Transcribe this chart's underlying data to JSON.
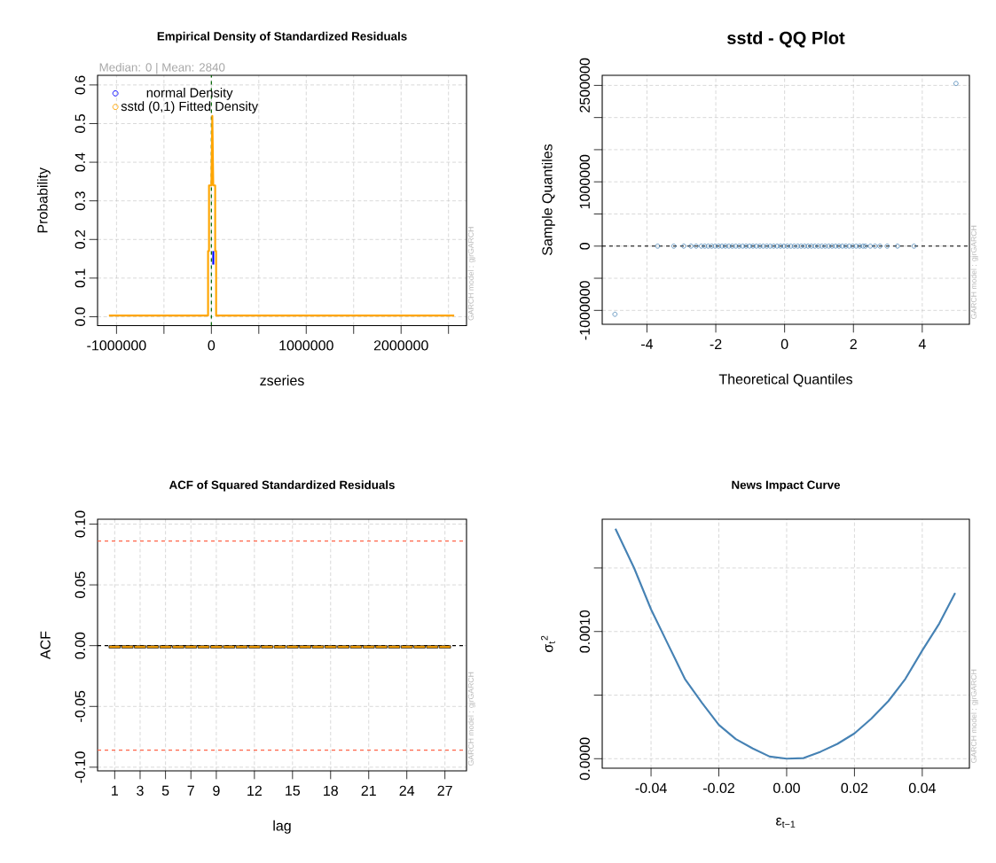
{
  "chart_data": [
    {
      "type": "line",
      "title": "Empirical Density of Standardized Residuals",
      "subtitle": "Median:  0 | Mean:  2840",
      "xlabel": "zseries",
      "ylabel": "Probability",
      "xlim": [
        -1200000,
        2690000
      ],
      "ylim": [
        -0.023,
        0.625
      ],
      "xticks": [
        -1000000,
        {
          "value": -500000,
          "label": null
        },
        0,
        {
          "value": 500000,
          "label": null
        },
        1000000,
        {
          "value": 1500000,
          "label": null
        },
        2000000,
        {
          "value": 2500000,
          "label": null
        }
      ],
      "yticks": [
        {
          "value": 0,
          "label": "0.0"
        },
        0.1,
        0.2,
        0.3,
        0.4,
        0.5,
        0.6
      ],
      "series": [
        {
          "name": "normal Density",
          "color": "#0000ff",
          "x": [
            20000,
            20000
          ],
          "values": [
            0.135,
            0.17
          ]
        },
        {
          "name": "sstd (0,1) Fitted Density",
          "color": "#ffa500",
          "x": [
            -1080000,
            -35000,
            -35000,
            -25000,
            -25000,
            0,
            10000,
            20000,
            40000,
            40000,
            50000,
            50000,
            2560000
          ],
          "values": [
            0.003,
            0.003,
            0.17,
            0.17,
            0.34,
            0.34,
            0.52,
            0.34,
            0.34,
            0.17,
            0.17,
            0.003,
            0.003
          ]
        }
      ],
      "ref_lines": [
        {
          "axis": "x",
          "value": 0,
          "color": "#006400",
          "line_style": "dashed"
        }
      ],
      "grid": true,
      "legend": "top left",
      "annotations": [
        "GARCH model : gjrGARCH"
      ]
    },
    {
      "type": "scatter",
      "title": "sstd - QQ Plot",
      "xlabel": "Theoretical Quantiles",
      "ylabel": "Sample Quantiles",
      "xlim": [
        -5.3,
        5.37
      ],
      "ylim": [
        -1216000,
        2657000
      ],
      "xticks": [
        -4,
        -2,
        0,
        2,
        4
      ],
      "yticks": [
        -1000000,
        {
          "value": -500000,
          "label": null
        },
        0,
        {
          "value": 500000,
          "label": null
        },
        1000000,
        {
          "value": 1500000,
          "label": null
        },
        {
          "value": 2000000,
          "label": null
        },
        2500000
      ],
      "color": "#4682b4",
      "marker": "circle",
      "x": [
        -4.93,
        -3.69,
        -3.22,
        -2.93,
        -2.72,
        -2.57,
        -2.42,
        -2.32,
        -2.22,
        -2.12,
        -2.02,
        -1.92,
        -1.82,
        -1.72,
        -1.62,
        -1.52,
        -1.42,
        -1.32,
        -1.22,
        -1.12,
        -1.02,
        -0.92,
        -0.82,
        -0.72,
        -0.62,
        -0.52,
        -0.42,
        -0.32,
        -0.22,
        -0.12,
        -0.02,
        0.08,
        0.18,
        0.28,
        0.38,
        0.48,
        0.58,
        0.68,
        0.78,
        0.88,
        0.98,
        1.08,
        1.18,
        1.28,
        1.38,
        1.48,
        1.58,
        1.68,
        1.78,
        1.88,
        1.98,
        2.08,
        2.18,
        2.28,
        2.35,
        2.49,
        2.63,
        2.77,
        2.98,
        3.28,
        3.76,
        4.98
      ],
      "values": [
        -1060000,
        0,
        0,
        0,
        0,
        0,
        0,
        0,
        0,
        0,
        0,
        0,
        0,
        0,
        0,
        0,
        0,
        0,
        0,
        0,
        0,
        0,
        0,
        0,
        0,
        0,
        0,
        0,
        0,
        0,
        0,
        0,
        0,
        0,
        0,
        0,
        0,
        0,
        0,
        0,
        0,
        0,
        0,
        0,
        0,
        0,
        0,
        0,
        0,
        0,
        0,
        0,
        0,
        0,
        0,
        0,
        0,
        0,
        0,
        0,
        0,
        2530000
      ],
      "ref_lines": [
        {
          "axis": "y",
          "value": 0,
          "color": "#000000",
          "line_style": "dashed"
        }
      ],
      "grid": true,
      "annotations": [
        "GARCH model : gjrGARCH"
      ]
    },
    {
      "type": "bar",
      "title": "ACF of Squared Standardized Residuals",
      "xlabel": "lag",
      "ylabel": "ACF",
      "xlim": [
        -0.35,
        28.7
      ],
      "ylim": [
        -0.103,
        0.104
      ],
      "xticks": [
        1,
        3,
        5,
        7,
        9,
        12,
        15,
        18,
        21,
        24,
        27
      ],
      "yticks": [
        {
          "value": -0.1,
          "label": "-0.10"
        },
        {
          "value": -0.05,
          "label": "-0.05"
        },
        {
          "value": 0,
          "label": "0.00"
        },
        0.05,
        {
          "value": 0.1,
          "label": "0.10"
        }
      ],
      "color": "#ffa500",
      "x": [
        1,
        2,
        3,
        4,
        5,
        6,
        7,
        8,
        9,
        10,
        11,
        12,
        13,
        14,
        15,
        16,
        17,
        18,
        19,
        20,
        21,
        22,
        23,
        24,
        25,
        26,
        27
      ],
      "values": [
        -0.002,
        -0.002,
        -0.002,
        -0.002,
        -0.002,
        -0.002,
        -0.002,
        -0.002,
        -0.002,
        -0.002,
        -0.002,
        -0.002,
        -0.002,
        -0.002,
        -0.002,
        -0.002,
        -0.002,
        -0.002,
        -0.002,
        -0.002,
        -0.002,
        -0.002,
        -0.002,
        -0.002,
        -0.002,
        -0.002,
        -0.002
      ],
      "ref_lines": [
        {
          "axis": "y",
          "value": 0.086,
          "color": "#ff6347",
          "line_style": "dashed"
        },
        {
          "axis": "y",
          "value": -0.086,
          "color": "#ff6347",
          "line_style": "dashed"
        },
        {
          "axis": "y",
          "value": 0,
          "color": "#000000",
          "line_style": "dashed"
        }
      ],
      "grid": true,
      "annotations": [
        "GARCH model : gjrGARCH"
      ]
    },
    {
      "type": "line",
      "title": "News Impact Curve",
      "xlabel": "ε$_{t−1}$",
      "ylabel": "σ$_{t}$$^{2}$",
      "xlim": [
        -0.0544,
        0.0539
      ],
      "ylim": [
        -7.46e-05,
        0.001883
      ],
      "xticks": [
        -0.04,
        -0.02,
        {
          "value": 0,
          "label": "0.00"
        },
        0.02,
        0.04
      ],
      "yticks": [
        {
          "value": 0,
          "label": "0.0000"
        },
        {
          "value": 0.0005,
          "label": null
        },
        {
          "value": 0.001,
          "label": "0.0010"
        },
        {
          "value": 0.0015,
          "label": null
        }
      ],
      "color": "#4682b4",
      "x": [
        -0.0505,
        -0.045,
        -0.04,
        -0.035,
        -0.03,
        -0.025,
        -0.02,
        -0.015,
        -0.01,
        -0.005,
        0,
        0.005,
        0.01,
        0.015,
        0.02,
        0.025,
        0.03,
        0.035,
        0.04,
        0.045,
        0.0497
      ],
      "values": [
        0.001808,
        0.0015,
        0.001174,
        0.0009,
        0.000627,
        0.00044,
        0.000266,
        0.000154,
        8e-05,
        1.7e-05,
        0,
        5e-06,
        5.5e-05,
        0.000117,
        0.000199,
        0.000316,
        0.000453,
        0.000627,
        0.000851,
        0.001062,
        0.001303
      ],
      "grid": true,
      "annotations": [
        "GARCH model : gjrGARCH"
      ]
    }
  ]
}
